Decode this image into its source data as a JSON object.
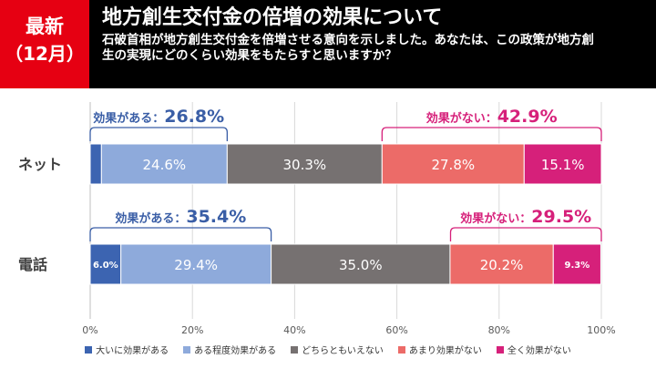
{
  "header": {
    "badge_line1": "最新",
    "badge_line2": "（12月）",
    "title": "地方創生交付金の倍増の効果について",
    "question": "石破首相が地方創生交付金を倍増させる意向を示しました。あなたは、この政策が地方創生の実現にどのくらい効果をもたらすと思いますか？"
  },
  "colors": {
    "header_bg": "#000000",
    "badge_bg": "#e60012",
    "effective": "#3a5ea6",
    "not_effective": "#d6207a"
  },
  "chart_data": {
    "type": "bar",
    "orientation": "horizontal",
    "stacked": true,
    "categories": [
      "ネット",
      "電話"
    ],
    "series": [
      {
        "name": "大いに効果がある",
        "color": "#3c64b1",
        "values": [
          2.2,
          6.0
        ],
        "labels": [
          "",
          "6.0%"
        ]
      },
      {
        "name": "ある程度効果がある",
        "color": "#8eaadb",
        "values": [
          24.6,
          29.4
        ],
        "labels": [
          "24.6%",
          "29.4%"
        ]
      },
      {
        "name": "どちらともいえない",
        "color": "#767171",
        "values": [
          30.3,
          35.0
        ],
        "labels": [
          "30.3%",
          "35.0%"
        ]
      },
      {
        "name": "あまり効果がない",
        "color": "#ec6b68",
        "values": [
          27.8,
          20.2
        ],
        "labels": [
          "27.8%",
          "20.2%"
        ]
      },
      {
        "name": "全く効果がない",
        "color": "#d6207a",
        "values": [
          15.1,
          9.3
        ],
        "labels": [
          "15.1%",
          "9.3%"
        ]
      }
    ],
    "annotations": [
      {
        "category": "ネット",
        "group": "effective",
        "label": "効果がある：",
        "value": "26.8%",
        "from": 0,
        "to": 26.8
      },
      {
        "category": "ネット",
        "group": "not_effective",
        "label": "効果がない：",
        "value": "42.9%",
        "from": 57.1,
        "to": 100
      },
      {
        "category": "電話",
        "group": "effective",
        "label": "効果がある：",
        "value": "35.4%",
        "from": 0,
        "to": 35.4
      },
      {
        "category": "電話",
        "group": "not_effective",
        "label": "効果がない：",
        "value": "29.5%",
        "from": 70.5,
        "to": 100
      }
    ],
    "xlim": [
      0,
      100
    ],
    "xticks": [
      0,
      20,
      40,
      60,
      80,
      100
    ],
    "xtick_labels": [
      "0%",
      "20%",
      "40%",
      "60%",
      "80%",
      "100%"
    ],
    "grid": true,
    "legend_position": "bottom"
  }
}
